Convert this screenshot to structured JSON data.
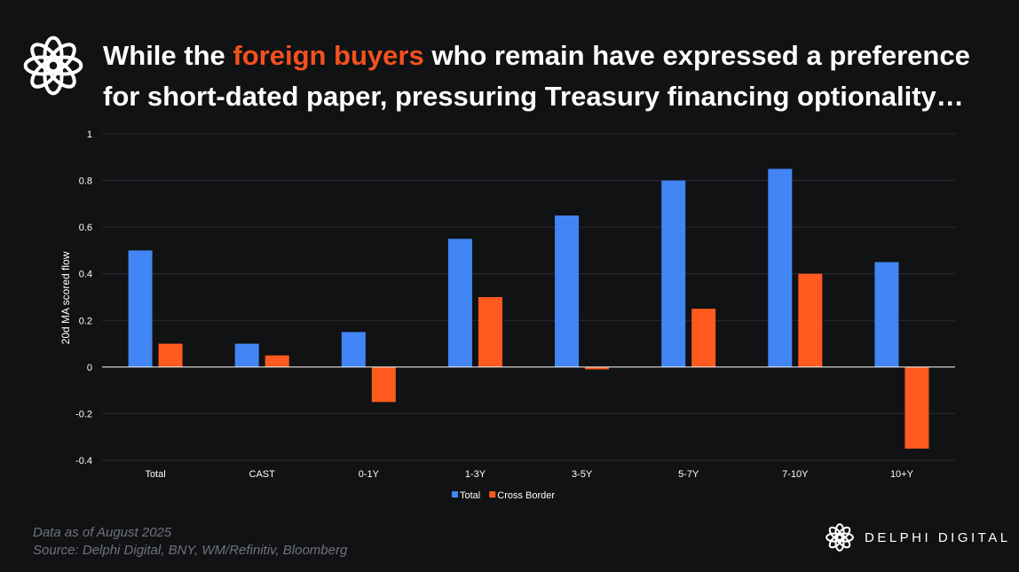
{
  "header": {
    "title_part1": "While the ",
    "title_highlight": "foreign buyers",
    "title_part2": " who remain have expressed a preference for short-dated paper, pressuring Treasury financing optionality…"
  },
  "chart_data": {
    "type": "bar",
    "title": "",
    "xlabel": "",
    "ylabel": "20d MA scored flow",
    "ylim": [
      -0.4,
      1.0
    ],
    "yticks": [
      -0.4,
      -0.2,
      0,
      0.2,
      0.4,
      0.6,
      0.8,
      1
    ],
    "grid": true,
    "legend_position": "bottom",
    "categories": [
      "Total",
      "CAST",
      "0-1Y",
      "1-3Y",
      "3-5Y",
      "5-7Y",
      "7-10Y",
      "10+Y"
    ],
    "series": [
      {
        "name": "Total",
        "color": "#4285f4",
        "values": [
          0.5,
          0.1,
          0.15,
          0.55,
          0.65,
          0.8,
          0.85,
          0.45
        ]
      },
      {
        "name": "Cross Border",
        "color": "#ff5a1f",
        "values": [
          0.1,
          0.05,
          -0.15,
          0.3,
          -0.01,
          0.25,
          0.4,
          -0.35
        ]
      }
    ]
  },
  "footer": {
    "note_line1": "Data as of August  2025",
    "note_line2": "Source:  Delphi Digital, BNY, WM/Refinitiv, Bloomberg"
  },
  "brand": {
    "logo_icon": "delphi-knot-icon",
    "name": "DELPHI DIGITAL"
  }
}
